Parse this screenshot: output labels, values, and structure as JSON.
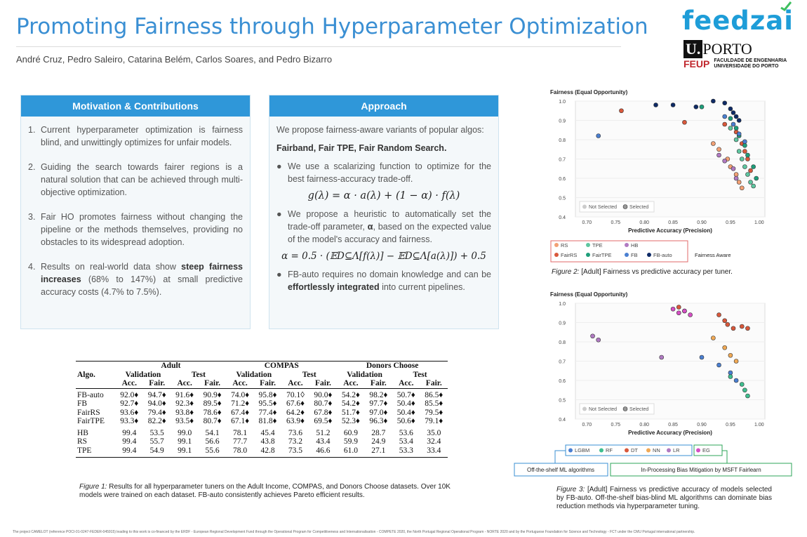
{
  "header": {
    "title": "Promoting Fairness through Hyperparameter Optimization",
    "authors": "André Cruz, Pedro Saleiro, Catarina Belém, Carlos Soares, and Pedro Bizarro"
  },
  "logos": {
    "feedzai": "feedzai",
    "uporto_u": "U.",
    "uporto": "PORTO",
    "feup": "FEUP",
    "feup_line1": "FACULDADE DE ENGENHARIA",
    "feup_line2": "UNIVERSIDADE DO PORTO"
  },
  "motivation": {
    "heading": "Motivation & Contributions",
    "items": [
      {
        "num": "1.",
        "text": "Current hyperparameter optimization is fairness blind, and unwittingly optimizes for unfair models."
      },
      {
        "num": "2.",
        "text": "Guiding the search towards fairer regions is a natural solution that can be achieved through multi-objective optimization."
      },
      {
        "num": "3.",
        "text": "Fair HO promotes fairness without changing the pipeline or the methods themselves, providing no obstacles to its widespread adoption."
      },
      {
        "num": "4.",
        "pre": "Results on real-world data show ",
        "bold": "steep fairness increases",
        "post": " (68% to 147%) at small predictive accuracy costs (4.7% to 7.5%)."
      }
    ]
  },
  "approach": {
    "heading": "Approach",
    "intro": "We propose fairness-aware variants of popular algos:",
    "algos": "Fairband, Fair TPE, Fair Random Search.",
    "bullet1": "We use a scalarizing function to optimize for the best fairness-accuracy trade-off.",
    "formula1": "g(λ) = α · a(λ) + (1 − α) · f(λ)",
    "bullet2_pre": "We propose a heuristic to automatically set the trade-off parameter, ",
    "bullet2_alpha": "α",
    "bullet2_post": ", based on the expected value of the model's accuracy and fairness.",
    "formula2": "α = 0.5 · (𝔼D⊆Λ[f(λ)] − 𝔼D⊆Λ[a(λ)]) + 0.5",
    "bullet3_pre": "FB-auto requires no domain knowledge and can be ",
    "bullet3_bold": "effortlessly integrated",
    "bullet3_post": " into current pipelines."
  },
  "table": {
    "datasets": [
      "Adult",
      "COMPAS",
      "Donors Choose"
    ],
    "splits": [
      "Validation",
      "Test"
    ],
    "metrics": [
      "Acc.",
      "Fair."
    ],
    "algo_header": "Algo.",
    "rows": [
      {
        "algo": "FB-auto",
        "cells": [
          "92.0♦",
          "94.7♦",
          "91.6♦",
          "90.9♦",
          "74.0♦",
          "95.8♦",
          "70.1◊",
          "90.0♦",
          "54.2♦",
          "98.2♦",
          "50.7♦",
          "86.5♦"
        ]
      },
      {
        "algo": "FB",
        "cells": [
          "92.7♦",
          "94.0♦",
          "92.3♦",
          "89.5♦",
          "71.2♦",
          "95.5♦",
          "67.6♦",
          "80.7♦",
          "54.2♦",
          "97.7♦",
          "50.4♦",
          "85.5♦"
        ]
      },
      {
        "algo": "FairRS",
        "cells": [
          "93.6♦",
          "79.4♦",
          "93.8♦",
          "78.6♦",
          "67.4♦",
          "77.4♦",
          "64.2♦",
          "67.8♦",
          "51.7♦",
          "97.0♦",
          "50.4♦",
          "79.5♦"
        ]
      },
      {
        "algo": "FairTPE",
        "cells": [
          "93.3♦",
          "82.2♦",
          "93.5♦",
          "80.7♦",
          "67.1♦",
          "81.8♦",
          "63.9♦",
          "69.5♦",
          "52.3♦",
          "96.3♦",
          "50.6♦",
          "79.1♦"
        ]
      },
      {
        "algo": "HB",
        "cells": [
          "99.4",
          "53.5",
          "99.0",
          "54.1",
          "78.1",
          "45.4",
          "73.6",
          "51.2",
          "60.9",
          "28.7",
          "53.6",
          "35.0"
        ]
      },
      {
        "algo": "RS",
        "cells": [
          "99.4",
          "55.7",
          "99.1",
          "56.6",
          "77.7",
          "43.8",
          "73.2",
          "43.4",
          "59.9",
          "24.9",
          "53.4",
          "32.4"
        ]
      },
      {
        "algo": "TPE",
        "cells": [
          "99.4",
          "54.9",
          "99.1",
          "55.6",
          "78.0",
          "42.8",
          "73.5",
          "46.6",
          "61.0",
          "27.1",
          "53.3",
          "33.4"
        ]
      }
    ]
  },
  "fig1_caption": {
    "label": "Figure 1:",
    "text": " Results for all hyperparameter tuners on the Adult Income, COMPAS, and Donors Choose datasets. Over 10K models were trained on each dataset. FB-auto consistently achieves Pareto efficient results."
  },
  "fig2": {
    "caption_label": "Figure 2:",
    "caption_text": " [Adult] Fairness vs predictive accuracy per tuner.",
    "legend_bottom": [
      "RS",
      "TPE",
      "HB",
      "FairRS",
      "FairTPE",
      "FB",
      "FB-auto"
    ],
    "fairness_aware": "Fairness Aware"
  },
  "fig3": {
    "caption_label": "Figure 3:",
    "caption_text": " [Adult] Fairness vs predictive accuracy of models selected by FB-auto. Off-the-shelf bias-blind ML algorithms can dominate bias reduction methods via hyperparameter tuning.",
    "legend_bottom": [
      "LGBM",
      "RF",
      "DT",
      "NN",
      "LR",
      "EG"
    ],
    "label_offshelf": "Off-the-shelf ML algorithms",
    "label_inproc": "In-Processing Bias Mitigation by MSFT Fairlearn"
  },
  "chart_data": [
    {
      "type": "scatter",
      "title": "Fairness (Equal Opportunity)",
      "xlabel": "Predictive Accuracy (Precision)",
      "ylabel": "Fairness (Equal Opportunity)",
      "xlim": [
        0.68,
        1.01
      ],
      "ylim": [
        0.4,
        1.0
      ],
      "xticks": [
        "0.70",
        "0.75",
        "0.80",
        "0.85",
        "0.90",
        "0.95",
        "1.00"
      ],
      "yticks": [
        "0.4",
        "0.5",
        "0.6",
        "0.7",
        "0.8",
        "0.9",
        "1.0"
      ],
      "legend": [
        "Not Selected",
        "Selected"
      ],
      "series": [
        {
          "name": "RS",
          "color": "#f2a074",
          "points": [
            [
              0.92,
              0.78
            ],
            [
              0.93,
              0.75
            ],
            [
              0.945,
              0.7
            ],
            [
              0.95,
              0.66
            ],
            [
              0.96,
              0.62
            ],
            [
              0.965,
              0.58
            ],
            [
              0.97,
              0.55
            ]
          ]
        },
        {
          "name": "TPE",
          "color": "#5ec6a0",
          "points": [
            [
              0.95,
              0.86
            ],
            [
              0.96,
              0.8
            ],
            [
              0.965,
              0.74
            ],
            [
              0.97,
              0.7
            ],
            [
              0.975,
              0.66
            ],
            [
              0.98,
              0.62
            ],
            [
              0.985,
              0.58
            ],
            [
              0.99,
              0.56
            ]
          ]
        },
        {
          "name": "HB",
          "color": "#b07ac2",
          "points": [
            [
              0.93,
              0.72
            ],
            [
              0.94,
              0.69
            ],
            [
              0.955,
              0.65
            ],
            [
              0.96,
              0.6
            ]
          ]
        },
        {
          "name": "FairRS",
          "color": "#d9583b",
          "points": [
            [
              0.76,
              0.95
            ],
            [
              0.87,
              0.89
            ],
            [
              0.94,
              0.88
            ],
            [
              0.96,
              0.84
            ],
            [
              0.97,
              0.78
            ],
            [
              0.975,
              0.74
            ],
            [
              0.98,
              0.7
            ],
            [
              0.985,
              0.64
            ]
          ]
        },
        {
          "name": "FairTPE",
          "color": "#1e9e7a",
          "points": [
            [
              0.9,
              0.97
            ],
            [
              0.95,
              0.91
            ],
            [
              0.96,
              0.86
            ],
            [
              0.965,
              0.82
            ],
            [
              0.975,
              0.77
            ],
            [
              0.98,
              0.72
            ],
            [
              0.99,
              0.66
            ],
            [
              0.995,
              0.6
            ]
          ]
        },
        {
          "name": "FB",
          "color": "#4a7fd1",
          "points": [
            [
              0.72,
              0.82
            ],
            [
              0.94,
              0.92
            ],
            [
              0.955,
              0.88
            ],
            [
              0.965,
              0.83
            ],
            [
              0.975,
              0.79
            ]
          ]
        },
        {
          "name": "FB-auto",
          "color": "#0e2a66",
          "points": [
            [
              0.82,
              0.98
            ],
            [
              0.85,
              0.98
            ],
            [
              0.89,
              0.97
            ],
            [
              0.92,
              1.0
            ],
            [
              0.94,
              0.99
            ],
            [
              0.95,
              0.96
            ],
            [
              0.955,
              0.94
            ],
            [
              0.96,
              0.92
            ],
            [
              0.965,
              0.9
            ]
          ]
        }
      ]
    },
    {
      "type": "scatter",
      "title": "Fairness (Equal Opportunity)",
      "xlabel": "Predictive Accuracy (Precision)",
      "ylabel": "Fairness (Equal Opportunity)",
      "xlim": [
        0.68,
        1.01
      ],
      "ylim": [
        0.4,
        1.0
      ],
      "xticks": [
        "0.70",
        "0.75",
        "0.80",
        "0.85",
        "0.90",
        "0.95",
        "1.00"
      ],
      "yticks": [
        "0.4",
        "0.5",
        "0.6",
        "0.7",
        "0.8",
        "0.9",
        "1.0"
      ],
      "legend": [
        "Not Selected",
        "Selected"
      ],
      "series": [
        {
          "name": "LGBM",
          "color": "#4a7fd1",
          "points": [
            [
              0.9,
              0.72
            ],
            [
              0.93,
              0.68
            ],
            [
              0.95,
              0.64
            ],
            [
              0.96,
              0.6
            ]
          ]
        },
        {
          "name": "RF",
          "color": "#3fbf8f",
          "points": [
            [
              0.95,
              0.62
            ],
            [
              0.97,
              0.58
            ],
            [
              0.975,
              0.55
            ],
            [
              0.98,
              0.52
            ]
          ]
        },
        {
          "name": "DT",
          "color": "#d9583b",
          "points": [
            [
              0.86,
              0.98
            ],
            [
              0.87,
              0.96
            ],
            [
              0.93,
              0.94
            ],
            [
              0.94,
              0.91
            ],
            [
              0.945,
              0.89
            ],
            [
              0.955,
              0.87
            ],
            [
              0.97,
              0.88
            ],
            [
              0.98,
              0.87
            ]
          ]
        },
        {
          "name": "NN",
          "color": "#f0a955",
          "points": [
            [
              0.92,
              0.82
            ],
            [
              0.94,
              0.77
            ],
            [
              0.95,
              0.73
            ],
            [
              0.96,
              0.7
            ]
          ]
        },
        {
          "name": "LR",
          "color": "#b07ac2",
          "points": [
            [
              0.71,
              0.83
            ],
            [
              0.72,
              0.81
            ],
            [
              0.83,
              0.72
            ]
          ]
        },
        {
          "name": "EG",
          "color": "#d54fc4",
          "points": [
            [
              0.85,
              0.97
            ],
            [
              0.86,
              0.95
            ],
            [
              0.87,
              0.96
            ],
            [
              0.88,
              0.94
            ]
          ]
        }
      ]
    }
  ],
  "footer": "The project CAMELOT (reference POCI-01-0247-FEDER-045915) leading to this work is co-financed by the ERDF - European Regional Development Fund through the Operational Program for Competitiveness and Internationalisation - COMPETE 2020, the North Portugal Regional Operational Program - NORTE 2020 and by the Portuguese Foundation for Science and Technology - FCT under the CMU Portugal international partnership."
}
